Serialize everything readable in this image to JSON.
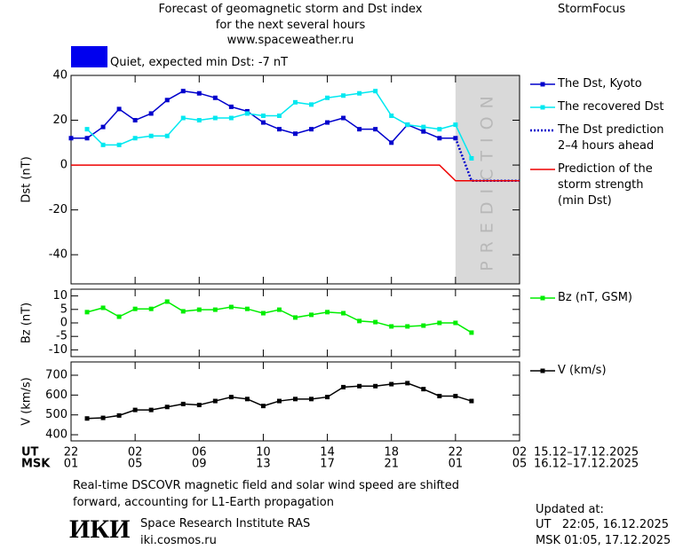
{
  "header": {
    "title": [
      "Forecast of geomagnetic storm and Dst index",
      "for the next several hours",
      "www.spaceweather.ru"
    ],
    "brand": "StormFocus"
  },
  "status": {
    "label": "Quiet, expected min Dst: -7 nT",
    "color": "#0000ee"
  },
  "chart_data": [
    {
      "type": "line",
      "ylabel": "Dst (nT)",
      "xlim": [
        0,
        28
      ],
      "ylim": [
        -53,
        40
      ],
      "yticks": [
        40,
        20,
        0,
        -20,
        -40
      ],
      "x": [
        0,
        1,
        2,
        3,
        4,
        5,
        6,
        7,
        8,
        9,
        10,
        11,
        12,
        13,
        14,
        15,
        16,
        17,
        18,
        19,
        20,
        21,
        22,
        23,
        24,
        25,
        26,
        27,
        28
      ],
      "shade": {
        "xlim": [
          24,
          28
        ],
        "color": "#d9d9d9",
        "label": "PREDICTION"
      },
      "series": [
        {
          "name": "The Dst, Kyoto",
          "color": "#0000cc",
          "marker": "square",
          "dash": false,
          "values": [
            12,
            12,
            17,
            25,
            20,
            23,
            29,
            33,
            32,
            30,
            26,
            24,
            19,
            16,
            14,
            16,
            19,
            21,
            16,
            16,
            10,
            18,
            15,
            12,
            12,
            null,
            null,
            null,
            null
          ]
        },
        {
          "name": "The recovered Dst",
          "color": "#00e8f0",
          "marker": "square",
          "dash": false,
          "values": [
            null,
            16,
            9,
            9,
            12,
            13,
            13,
            21,
            20,
            21,
            21,
            23,
            22,
            22,
            28,
            27,
            30,
            31,
            32,
            33,
            22,
            18,
            17,
            16,
            18,
            3,
            null,
            null,
            null
          ]
        },
        {
          "name": "The Dst prediction\n2–4 hours ahead",
          "color": "#0000cc",
          "marker": "none",
          "dash": true,
          "values": [
            null,
            null,
            null,
            null,
            null,
            null,
            null,
            null,
            null,
            null,
            null,
            null,
            null,
            null,
            null,
            null,
            null,
            null,
            null,
            null,
            null,
            null,
            null,
            null,
            12,
            -7,
            -7,
            -7,
            -7
          ]
        },
        {
          "name": "Prediction of the\nstorm strength\n(min Dst)",
          "color": "#ee0000",
          "marker": "none",
          "dash": false,
          "values": [
            0,
            0,
            0,
            0,
            0,
            0,
            0,
            0,
            0,
            0,
            0,
            0,
            0,
            0,
            0,
            0,
            0,
            0,
            0,
            0,
            0,
            0,
            0,
            0,
            -7,
            -7,
            -7,
            -7,
            -7
          ]
        }
      ]
    },
    {
      "type": "line",
      "ylabel": "Bz (nT)",
      "xlim": [
        0,
        28
      ],
      "ylim": [
        -12.5,
        12.5
      ],
      "yticks": [
        10,
        5,
        0,
        -5,
        -10
      ],
      "x": [
        1,
        2,
        3,
        4,
        5,
        6,
        7,
        8,
        9,
        10,
        11,
        12,
        13,
        14,
        15,
        16,
        17,
        18,
        19,
        20,
        21,
        22,
        23,
        24,
        25
      ],
      "series": [
        {
          "name": "Bz (nT, GSM)",
          "color": "#00ee00",
          "marker": "square",
          "dash": false,
          "values": [
            4,
            5.6,
            2.3,
            5.2,
            5.2,
            7.9,
            4.3,
            4.9,
            4.9,
            5.9,
            5.2,
            3.6,
            4.9,
            2,
            3,
            4,
            3.6,
            0.7,
            0.3,
            -1.3,
            -1.3,
            -1,
            0,
            0,
            -3.6
          ]
        }
      ]
    },
    {
      "type": "line",
      "ylabel": "V (km/s)",
      "xlim": [
        0,
        28
      ],
      "ylim": [
        369,
        767
      ],
      "yticks": [
        700,
        600,
        500,
        400
      ],
      "x": [
        1,
        2,
        3,
        4,
        5,
        6,
        7,
        8,
        9,
        10,
        11,
        12,
        13,
        14,
        15,
        16,
        17,
        18,
        19,
        20,
        21,
        22,
        23,
        24,
        25
      ],
      "series": [
        {
          "name": "V (km/s)",
          "color": "#000000",
          "marker": "square",
          "dash": false,
          "values": [
            482,
            485,
            497,
            525,
            525,
            540,
            555,
            550,
            570,
            590,
            580,
            545,
            570,
            580,
            580,
            590,
            640,
            645,
            645,
            655,
            660,
            630,
            595,
            595,
            570
          ]
        }
      ],
      "xlabel_ut": "UT",
      "xlabel_msk": "MSK",
      "xticks": [
        {
          "value": 0,
          "label": "22"
        },
        {
          "value": 4,
          "label": "02"
        },
        {
          "value": 8,
          "label": "06"
        },
        {
          "value": 12,
          "label": "10"
        },
        {
          "value": 16,
          "label": "14"
        },
        {
          "value": 20,
          "label": "18"
        },
        {
          "value": 24,
          "label": "22"
        },
        {
          "value": 28,
          "label": "02"
        }
      ],
      "xticks_msk": [
        {
          "value": 0,
          "label": "01"
        },
        {
          "value": 4,
          "label": "05"
        },
        {
          "value": 8,
          "label": "09"
        },
        {
          "value": 12,
          "label": "13"
        },
        {
          "value": 16,
          "label": "17"
        },
        {
          "value": 20,
          "label": "21"
        },
        {
          "value": 24,
          "label": "01"
        },
        {
          "value": 28,
          "label": "05"
        }
      ],
      "date_range_ut": "15.12–17.12.2025",
      "date_range_msk": "16.12–17.12.2025"
    }
  ],
  "footer": {
    "note": "Real-time DSCOVR magnetic field and solar wind speed are shifted\nforward, accounting for L1-Earth propagation",
    "logo": "ИКИ",
    "institute": "Space Research Institute RAS",
    "site": "iki.cosmos.ru",
    "updated_label": "Updated at:",
    "updated_ut": "UT   22:05, 16.12.2025",
    "updated_msk": "MSK 01:05, 17.12.2025"
  }
}
